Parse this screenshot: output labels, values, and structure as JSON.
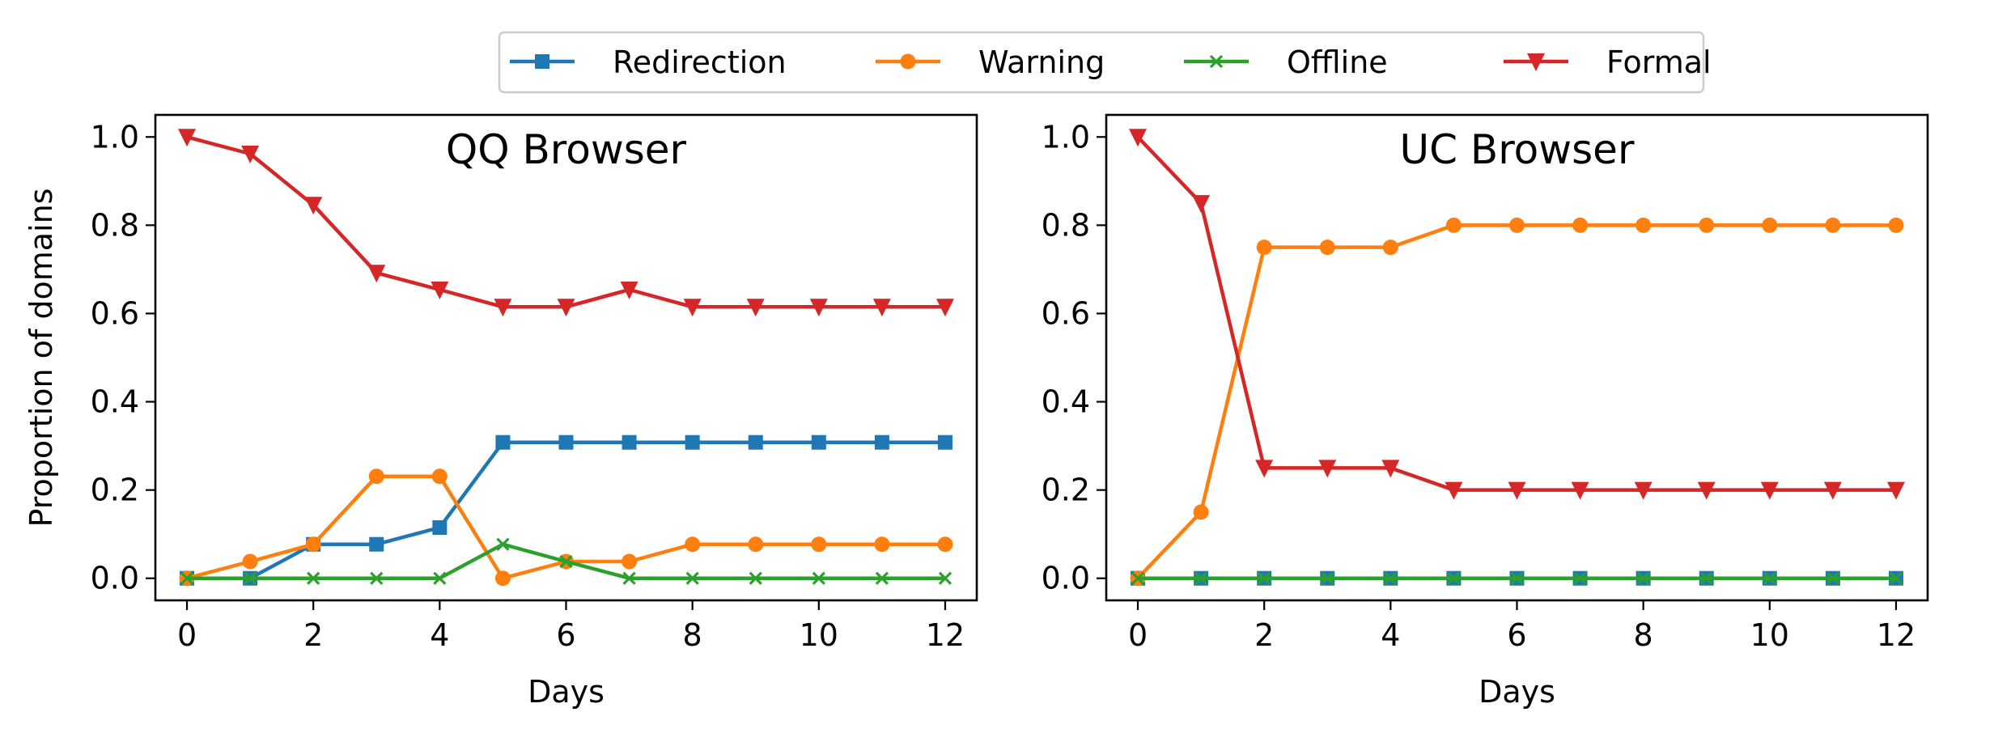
{
  "chart_data": [
    {
      "type": "line",
      "title": "QQ Browser",
      "xlabel": "Days",
      "ylabel": "Proportion of domains",
      "x": [
        0,
        1,
        2,
        3,
        4,
        5,
        6,
        7,
        8,
        9,
        10,
        11,
        12
      ],
      "xlim": [
        -0.5,
        12.5
      ],
      "ylim": [
        -0.05,
        1.05
      ],
      "xticks": [
        "0",
        "2",
        "4",
        "6",
        "8",
        "10",
        "12"
      ],
      "yticks": [
        "0.0",
        "0.2",
        "0.4",
        "0.6",
        "0.8",
        "1.0"
      ],
      "series": [
        {
          "name": "Redirection",
          "color": "#1f77b4",
          "marker": "square",
          "values": [
            0,
            0,
            0.077,
            0.077,
            0.115,
            0.308,
            0.308,
            0.308,
            0.308,
            0.308,
            0.308,
            0.308,
            0.308
          ]
        },
        {
          "name": "Warning",
          "color": "#ff7f0e",
          "marker": "circle",
          "values": [
            0,
            0.038,
            0.077,
            0.231,
            0.231,
            0,
            0.038,
            0.038,
            0.077,
            0.077,
            0.077,
            0.077,
            0.077
          ]
        },
        {
          "name": "Offline",
          "color": "#2ca02c",
          "marker": "x",
          "values": [
            0,
            0,
            0,
            0,
            0,
            0.077,
            0.038,
            0,
            0,
            0,
            0,
            0,
            0
          ]
        },
        {
          "name": "Formal",
          "color": "#d62728",
          "marker": "triangle-down",
          "values": [
            1.0,
            0.962,
            0.846,
            0.692,
            0.654,
            0.615,
            0.615,
            0.654,
            0.615,
            0.615,
            0.615,
            0.615,
            0.615
          ]
        }
      ]
    },
    {
      "type": "line",
      "title": "UC Browser",
      "xlabel": "Days",
      "ylabel": "",
      "x": [
        0,
        1,
        2,
        3,
        4,
        5,
        6,
        7,
        8,
        9,
        10,
        11,
        12
      ],
      "xlim": [
        -0.5,
        12.5
      ],
      "ylim": [
        -0.05,
        1.05
      ],
      "xticks": [
        "0",
        "2",
        "4",
        "6",
        "8",
        "10",
        "12"
      ],
      "yticks": [
        "0.0",
        "0.2",
        "0.4",
        "0.6",
        "0.8",
        "1.0"
      ],
      "series": [
        {
          "name": "Redirection",
          "color": "#1f77b4",
          "marker": "square",
          "values": [
            0,
            0,
            0,
            0,
            0,
            0,
            0,
            0,
            0,
            0,
            0,
            0,
            0
          ]
        },
        {
          "name": "Warning",
          "color": "#ff7f0e",
          "marker": "circle",
          "values": [
            0,
            0.15,
            0.75,
            0.75,
            0.75,
            0.8,
            0.8,
            0.8,
            0.8,
            0.8,
            0.8,
            0.8,
            0.8
          ]
        },
        {
          "name": "Offline",
          "color": "#2ca02c",
          "marker": "x",
          "values": [
            0,
            0,
            0,
            0,
            0,
            0,
            0,
            0,
            0,
            0,
            0,
            0,
            0
          ]
        },
        {
          "name": "Formal",
          "color": "#d62728",
          "marker": "triangle-down",
          "values": [
            1.0,
            0.85,
            0.25,
            0.25,
            0.25,
            0.2,
            0.2,
            0.2,
            0.2,
            0.2,
            0.2,
            0.2,
            0.2
          ]
        }
      ]
    }
  ],
  "legend": {
    "placement": "top-center",
    "entries": [
      {
        "label": "Redirection",
        "color": "#1f77b4",
        "marker": "square"
      },
      {
        "label": "Warning",
        "color": "#ff7f0e",
        "marker": "circle"
      },
      {
        "label": "Offline",
        "color": "#2ca02c",
        "marker": "x"
      },
      {
        "label": "Formal",
        "color": "#d62728",
        "marker": "triangle-down"
      }
    ]
  }
}
